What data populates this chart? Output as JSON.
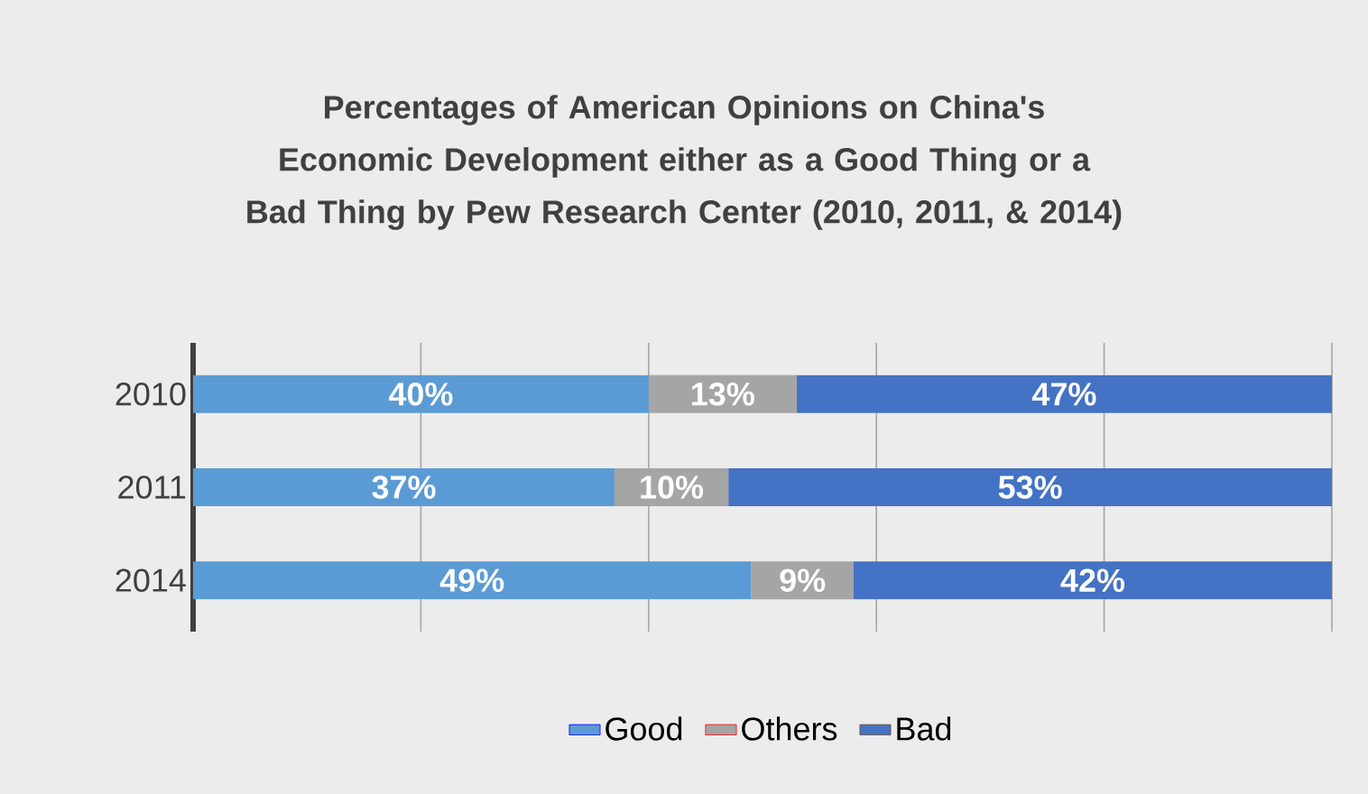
{
  "chart_data": {
    "type": "bar",
    "orientation": "horizontal",
    "stacked": true,
    "title": "Percentages of American Opinions on China's Economic Development either as a Good Thing or a Bad Thing by Pew Research Center (2010, 2011, & 2014)",
    "categories": [
      "2010",
      "2011",
      "2014"
    ],
    "series": [
      {
        "name": "Good",
        "color": "#5b9bd5",
        "values": [
          40,
          37,
          49
        ],
        "value_labels": [
          "40%",
          "37%",
          "49%"
        ]
      },
      {
        "name": "Others",
        "color": "#a5a5a5",
        "values": [
          13,
          10,
          9
        ],
        "value_labels": [
          "13%",
          "10%",
          "9%"
        ]
      },
      {
        "name": "Bad",
        "color": "#4472c4",
        "values": [
          47,
          53,
          42
        ],
        "value_labels": [
          "47%",
          "53%",
          "42%"
        ]
      }
    ],
    "xlim": [
      0,
      100
    ],
    "xticks": [
      {
        "value": 0,
        "label": null
      },
      {
        "value": 20,
        "label": null
      },
      {
        "value": 40,
        "label": null
      },
      {
        "value": 60,
        "label": null
      },
      {
        "value": 80,
        "label": null
      },
      {
        "value": 100,
        "label": null
      }
    ],
    "tick_labels": "y",
    "grid": "x",
    "legend": "bottom"
  }
}
